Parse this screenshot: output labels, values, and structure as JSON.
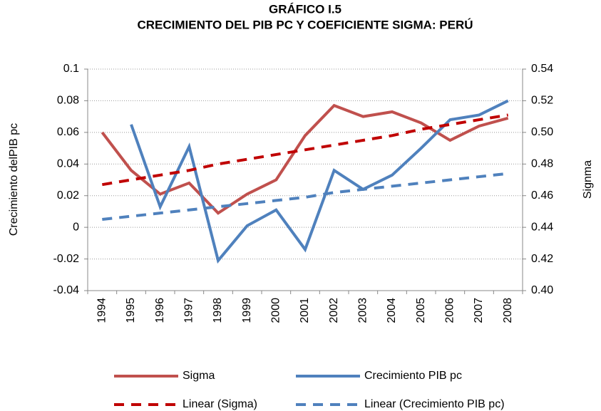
{
  "chart_data": {
    "type": "line",
    "title": "GRÁFICO I.5",
    "subtitle": "CRECIMIENTO DEL PIB PC Y COEFICIENTE SIGMA: PERÚ",
    "y_label": "Crecimiento delPIB pc",
    "y2_label": "Signma",
    "categories": [
      "1994",
      "1995",
      "1996",
      "1997",
      "1998",
      "1999",
      "2000",
      "2001",
      "2002",
      "2003",
      "2004",
      "2005",
      "2006",
      "2007",
      "2008"
    ],
    "ylim": [
      -0.04,
      0.1
    ],
    "yticks": [
      -0.04,
      -0.02,
      0,
      0.02,
      0.04,
      0.06,
      0.08,
      0.1
    ],
    "y2lim": [
      0.4,
      0.54
    ],
    "y2ticks": [
      {
        "value": 0.4,
        "label": "0.40"
      },
      {
        "value": 0.42,
        "label": "0.42"
      },
      {
        "value": 0.44,
        "label": "0.44"
      },
      {
        "value": 0.46,
        "label": "0.46"
      },
      {
        "value": 0.48,
        "label": "0.48"
      },
      {
        "value": 0.5,
        "label": "0.50"
      },
      {
        "value": 0.52,
        "label": "0.52"
      },
      {
        "value": 0.54,
        "label": "0.54"
      }
    ],
    "grid": true,
    "series": [
      {
        "name": "Sigma",
        "color": "#c0504d",
        "axis": "y2",
        "dashed": false,
        "values": [
          0.5,
          0.476,
          0.461,
          0.468,
          0.449,
          0.461,
          0.47,
          0.498,
          0.517,
          0.51,
          0.513,
          0.506,
          0.495,
          0.504,
          0.509
        ]
      },
      {
        "name": "Crecimiento PIB pc",
        "color": "#4f81bd",
        "axis": "y",
        "dashed": false,
        "values": [
          null,
          0.065,
          0.013,
          0.051,
          -0.021,
          0.001,
          0.011,
          -0.014,
          0.036,
          0.024,
          0.033,
          0.05,
          0.068,
          0.071,
          0.08
        ]
      },
      {
        "name": "Linear (Sigma)",
        "color": "#c00000",
        "axis": "y2",
        "dashed": true,
        "values": [
          0.467,
          0.47,
          0.473,
          0.476,
          0.48,
          0.483,
          0.486,
          0.489,
          0.492,
          0.495,
          0.498,
          0.502,
          0.505,
          0.508,
          0.511
        ]
      },
      {
        "name": "Linear (Crecimiento PIB pc)",
        "color": "#4f81bd",
        "axis": "y",
        "dashed": true,
        "values": [
          0.005,
          0.007,
          0.009,
          0.011,
          0.013,
          0.015,
          0.017,
          0.019,
          0.022,
          0.024,
          0.026,
          0.028,
          0.03,
          0.032,
          0.034
        ]
      }
    ]
  }
}
